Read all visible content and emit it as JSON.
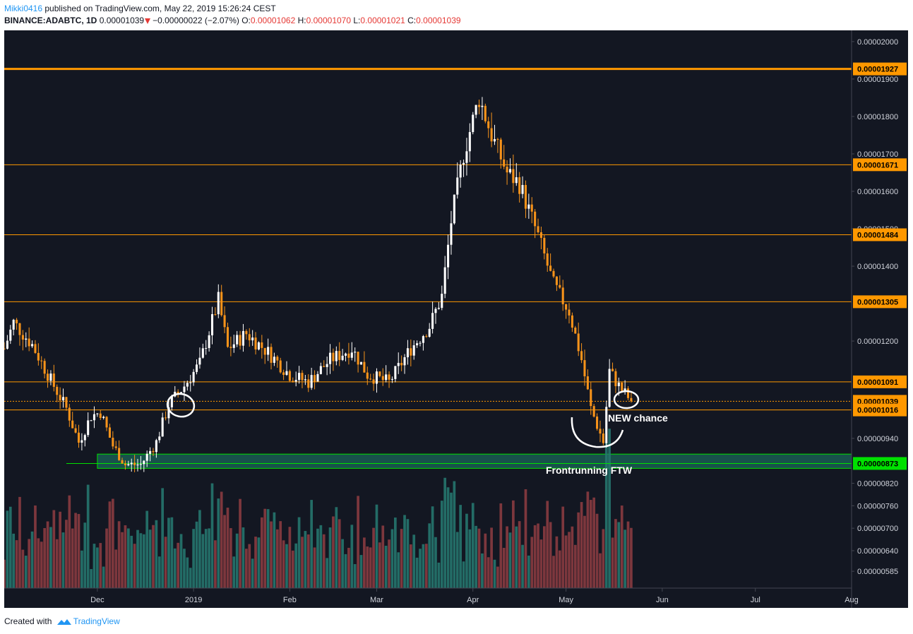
{
  "header": {
    "author": "Mikki0416",
    "published_text": "published on TradingView.com, May 22, 2019 15:26:24 CEST",
    "symbol_line": "BINANCE:ADABTC, 1D",
    "last": "0.00001039",
    "change": "−0.00000022 (−2.07%)",
    "o_label": "O:",
    "o": "0.00001062",
    "h_label": "H:",
    "h": "0.00001070",
    "l_label": "L:",
    "l": "0.00001021",
    "c_label": "C:",
    "c": "0.00001039"
  },
  "footer": {
    "created_with": "Created with",
    "brand": "TradingView"
  },
  "colors": {
    "background": "#131722",
    "up": "#ffffff",
    "down": "#f7931a",
    "level": "#ff9800",
    "support": "#00e000",
    "zone_fill": "#1a5c52",
    "vol_up": "#26756e",
    "vol_down": "#8a3b40"
  },
  "chart_data": {
    "type": "candlestick",
    "y_axis": {
      "min": 5.4e-06,
      "max": 2.03e-05,
      "ticks": [
        "0.00002000",
        "0.00001900",
        "0.00001800",
        "0.00001700",
        "0.00001600",
        "0.00001500",
        "0.00001400",
        "0.00001200",
        "0.00000940",
        "0.00000820",
        "0.00000760",
        "0.00000700",
        "0.00000640",
        "0.00000585"
      ]
    },
    "x_axis": {
      "labels": [
        {
          "label": "Dec",
          "date": "2018-12-01"
        },
        {
          "label": "2019",
          "date": "2019-01-01"
        },
        {
          "label": "Feb",
          "date": "2019-02-01"
        },
        {
          "label": "Mar",
          "date": "2019-03-01"
        },
        {
          "label": "Apr",
          "date": "2019-04-01"
        },
        {
          "label": "May",
          "date": "2019-05-01"
        },
        {
          "label": "Jun",
          "date": "2019-06-01"
        },
        {
          "label": "Jul",
          "date": "2019-07-01"
        },
        {
          "label": "Aug",
          "date": "2019-08-01"
        }
      ],
      "start": "2018-11-01",
      "end": "2019-08-01"
    },
    "price_keyframes": [
      {
        "date": "2018-11-01",
        "price": 1.18e-05
      },
      {
        "date": "2018-11-04",
        "price": 1.25e-05
      },
      {
        "date": "2018-11-10",
        "price": 1.19e-05
      },
      {
        "date": "2018-11-17",
        "price": 1.08e-05
      },
      {
        "date": "2018-11-21",
        "price": 1.02e-05
      },
      {
        "date": "2018-11-25",
        "price": 9.3e-06
      },
      {
        "date": "2018-11-29",
        "price": 1e-05
      },
      {
        "date": "2018-12-02",
        "price": 1.01e-05
      },
      {
        "date": "2018-12-06",
        "price": 9.2e-06
      },
      {
        "date": "2018-12-10",
        "price": 8.7e-06
      },
      {
        "date": "2018-12-15",
        "price": 8.7e-06
      },
      {
        "date": "2018-12-20",
        "price": 9.3e-06
      },
      {
        "date": "2018-12-24",
        "price": 1.03e-05
      },
      {
        "date": "2018-12-29",
        "price": 1.08e-05
      },
      {
        "date": "2019-01-03",
        "price": 1.14e-05
      },
      {
        "date": "2019-01-09",
        "price": 1.31e-05
      },
      {
        "date": "2019-01-12",
        "price": 1.18e-05
      },
      {
        "date": "2019-01-18",
        "price": 1.22e-05
      },
      {
        "date": "2019-01-25",
        "price": 1.17e-05
      },
      {
        "date": "2019-02-01",
        "price": 1.11e-05
      },
      {
        "date": "2019-02-07",
        "price": 1.09e-05
      },
      {
        "date": "2019-02-14",
        "price": 1.15e-05
      },
      {
        "date": "2019-02-21",
        "price": 1.18e-05
      },
      {
        "date": "2019-02-26",
        "price": 1.11e-05
      },
      {
        "date": "2019-03-05",
        "price": 1.09e-05
      },
      {
        "date": "2019-03-12",
        "price": 1.18e-05
      },
      {
        "date": "2019-03-18",
        "price": 1.24e-05
      },
      {
        "date": "2019-03-22",
        "price": 1.32e-05
      },
      {
        "date": "2019-03-25",
        "price": 1.52e-05
      },
      {
        "date": "2019-03-29",
        "price": 1.7e-05
      },
      {
        "date": "2019-04-03",
        "price": 1.85e-05
      },
      {
        "date": "2019-04-07",
        "price": 1.75e-05
      },
      {
        "date": "2019-04-12",
        "price": 1.65e-05
      },
      {
        "date": "2019-04-16",
        "price": 1.62e-05
      },
      {
        "date": "2019-04-22",
        "price": 1.48e-05
      },
      {
        "date": "2019-04-27",
        "price": 1.35e-05
      },
      {
        "date": "2019-05-02",
        "price": 1.28e-05
      },
      {
        "date": "2019-05-06",
        "price": 1.15e-05
      },
      {
        "date": "2019-05-09",
        "price": 1.02e-05
      },
      {
        "date": "2019-05-13",
        "price": 9.3e-06
      },
      {
        "date": "2019-05-15",
        "price": 1.12e-05
      },
      {
        "date": "2019-05-18",
        "price": 1.08e-05
      },
      {
        "date": "2019-05-22",
        "price": 1.039e-05
      }
    ],
    "levels": [
      {
        "value": 1.927e-05,
        "label": "0.00001927",
        "color": "#ff9800",
        "thick": true
      },
      {
        "value": 1.671e-05,
        "label": "0.00001671",
        "color": "#ff9800",
        "thick": false
      },
      {
        "value": 1.484e-05,
        "label": "0.00001484",
        "color": "#ff9800",
        "thick": false
      },
      {
        "value": 1.305e-05,
        "label": "0.00001305",
        "color": "#ff9800",
        "thick": false
      },
      {
        "value": 1.091e-05,
        "label": "0.00001091",
        "color": "#ff9800",
        "thick": false
      },
      {
        "value": 1.039e-05,
        "label": "0.00001039",
        "color": "#ff9800",
        "thick": false,
        "dotted": true
      },
      {
        "value": 1.016e-05,
        "label": "0.00001016",
        "color": "#ff9800",
        "thick": false
      },
      {
        "value": 8.73e-06,
        "label": "0.00000873",
        "color": "#00e000",
        "thick": false,
        "support": true
      }
    ],
    "zone": {
      "top": 8.98e-06,
      "bottom": 8.6e-06,
      "start": "2018-12-01"
    },
    "annotations": [
      {
        "text": "NEW chance"
      },
      {
        "text": "Frontrunning FTW"
      }
    ]
  }
}
